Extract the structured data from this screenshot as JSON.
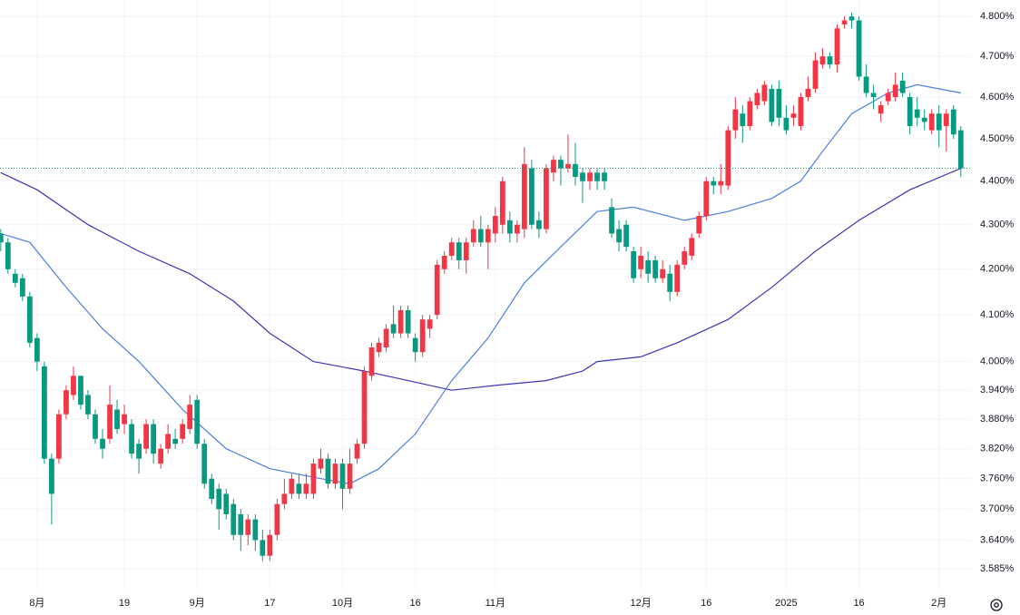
{
  "chart_data": {
    "type": "candlestick",
    "log_scale": true,
    "grid": true,
    "up_color": "#f23645",
    "down_color": "#089981",
    "price_line_color": "#089981",
    "open": [
      4.28,
      4.26,
      4.19,
      4.18,
      4.14,
      4.05,
      3.99,
      3.8,
      3.8,
      3.89,
      3.93,
      3.97,
      3.93,
      3.89,
      3.84,
      3.84,
      3.9,
      3.87,
      3.87,
      3.83,
      3.82,
      3.87,
      3.79,
      3.82,
      3.84,
      3.84,
      3.86,
      3.92,
      3.83,
      3.76,
      3.74,
      3.73,
      3.71,
      3.69,
      3.65,
      3.68,
      3.64,
      3.61,
      3.65,
      3.71,
      3.73,
      3.75,
      3.73,
      3.73,
      3.78,
      3.8,
      3.75,
      3.79,
      3.74,
      3.8,
      3.83,
      3.97,
      4.02,
      4.03,
      4.08,
      4.06,
      4.11,
      4.05,
      4.02,
      4.07,
      4.1,
      4.2,
      4.23,
      4.26,
      4.22,
      4.26,
      4.29,
      4.26,
      4.28,
      4.3,
      4.31,
      4.28,
      4.29,
      4.43,
      4.31,
      4.29,
      4.42,
      4.45,
      4.43,
      4.44,
      4.42,
      4.4,
      4.42,
      4.42,
      4.34,
      4.29,
      4.3,
      4.24,
      4.2,
      4.22,
      4.22,
      4.18,
      4.19,
      4.15,
      4.21,
      4.23,
      4.28,
      4.32,
      4.4,
      4.39,
      4.39,
      4.52,
      4.56,
      4.53,
      4.58,
      4.59,
      4.62,
      4.62,
      4.55,
      4.55,
      4.53,
      4.6,
      4.62,
      4.68,
      4.7,
      4.68,
      4.78,
      4.8,
      4.79,
      4.65,
      4.61,
      4.56,
      4.59,
      4.6,
      4.64,
      4.6,
      4.57,
      4.55,
      4.52,
      4.56,
      4.53,
      4.57,
      4.52
    ],
    "high": [
      4.29,
      4.27,
      4.2,
      4.19,
      4.15,
      4.06,
      4.0,
      3.81,
      3.9,
      3.95,
      3.99,
      3.97,
      3.94,
      3.9,
      3.86,
      3.95,
      3.92,
      3.91,
      3.88,
      3.84,
      3.88,
      3.88,
      3.83,
      3.87,
      3.86,
      3.88,
      3.93,
      3.93,
      3.84,
      3.77,
      3.75,
      3.74,
      3.72,
      3.7,
      3.69,
      3.69,
      3.66,
      3.66,
      3.72,
      3.76,
      3.77,
      3.77,
      3.77,
      3.8,
      3.82,
      3.81,
      3.8,
      3.8,
      3.82,
      3.84,
      3.99,
      4.04,
      4.05,
      4.08,
      4.12,
      4.12,
      4.12,
      4.06,
      4.1,
      4.1,
      4.22,
      4.24,
      4.27,
      4.27,
      4.27,
      4.31,
      4.32,
      4.3,
      4.34,
      4.41,
      4.33,
      4.31,
      4.48,
      4.45,
      4.33,
      4.44,
      4.46,
      4.46,
      4.51,
      4.49,
      4.43,
      4.43,
      4.43,
      4.43,
      4.36,
      4.31,
      4.31,
      4.25,
      4.25,
      4.24,
      4.23,
      4.22,
      4.21,
      4.22,
      4.25,
      4.28,
      4.33,
      4.41,
      4.41,
      4.44,
      4.53,
      4.6,
      4.58,
      4.6,
      4.62,
      4.64,
      4.63,
      4.64,
      4.58,
      4.58,
      4.61,
      4.65,
      4.71,
      4.72,
      4.71,
      4.78,
      4.8,
      4.81,
      4.8,
      4.68,
      4.63,
      4.59,
      4.62,
      4.66,
      4.66,
      4.61,
      4.6,
      4.57,
      4.57,
      4.58,
      4.57,
      4.58,
      4.53
    ],
    "low": [
      4.24,
      4.19,
      4.16,
      4.13,
      4.03,
      3.98,
      3.79,
      3.67,
      3.79,
      3.88,
      3.92,
      3.9,
      3.88,
      3.83,
      3.8,
      3.83,
      3.85,
      3.85,
      3.8,
      3.77,
      3.81,
      3.79,
      3.78,
      3.81,
      3.82,
      3.83,
      3.85,
      3.82,
      3.74,
      3.71,
      3.66,
      3.68,
      3.64,
      3.62,
      3.63,
      3.62,
      3.6,
      3.6,
      3.64,
      3.7,
      3.72,
      3.72,
      3.72,
      3.72,
      3.77,
      3.74,
      3.74,
      3.7,
      3.73,
      3.79,
      3.82,
      3.96,
      4.01,
      4.02,
      4.05,
      4.05,
      4.05,
      4.0,
      4.01,
      4.05,
      4.09,
      4.19,
      4.22,
      4.2,
      4.19,
      4.25,
      4.25,
      4.2,
      4.26,
      4.28,
      4.26,
      4.26,
      4.27,
      4.29,
      4.27,
      4.28,
      4.4,
      4.39,
      4.42,
      4.39,
      4.35,
      4.38,
      4.38,
      4.38,
      4.27,
      4.24,
      4.24,
      4.17,
      4.18,
      4.17,
      4.17,
      4.17,
      4.13,
      4.14,
      4.2,
      4.22,
      4.27,
      4.31,
      4.37,
      4.37,
      4.38,
      4.5,
      4.49,
      4.52,
      4.57,
      4.58,
      4.53,
      4.53,
      4.51,
      4.53,
      4.52,
      4.59,
      4.61,
      4.67,
      4.67,
      4.66,
      4.77,
      4.77,
      4.64,
      4.6,
      4.57,
      4.54,
      4.58,
      4.59,
      4.6,
      4.51,
      4.53,
      4.52,
      4.51,
      4.48,
      4.47,
      4.5,
      4.41
    ],
    "close": [
      4.26,
      4.2,
      4.17,
      4.14,
      4.04,
      4.0,
      3.8,
      3.73,
      3.89,
      3.94,
      3.97,
      3.91,
      3.89,
      3.84,
      3.82,
      3.91,
      3.86,
      3.89,
      3.81,
      3.8,
      3.87,
      3.81,
      3.82,
      3.85,
      3.83,
      3.87,
      3.91,
      3.83,
      3.75,
      3.72,
      3.7,
      3.69,
      3.65,
      3.65,
      3.68,
      3.64,
      3.61,
      3.65,
      3.71,
      3.73,
      3.76,
      3.73,
      3.75,
      3.79,
      3.8,
      3.75,
      3.79,
      3.74,
      3.79,
      3.83,
      3.98,
      4.03,
      4.04,
      4.07,
      4.06,
      4.11,
      4.06,
      4.02,
      4.09,
      4.09,
      4.21,
      4.23,
      4.26,
      4.22,
      4.26,
      4.29,
      4.26,
      4.29,
      4.32,
      4.4,
      4.28,
      4.3,
      4.44,
      4.3,
      4.29,
      4.43,
      4.45,
      4.43,
      4.44,
      4.41,
      4.4,
      4.42,
      4.4,
      4.4,
      4.28,
      4.26,
      4.25,
      4.18,
      4.23,
      4.19,
      4.18,
      4.2,
      4.15,
      4.21,
      4.24,
      4.27,
      4.32,
      4.4,
      4.39,
      4.4,
      4.52,
      4.57,
      4.53,
      4.59,
      4.61,
      4.63,
      4.54,
      4.55,
      4.52,
      4.56,
      4.6,
      4.62,
      4.69,
      4.7,
      4.68,
      4.77,
      4.79,
      4.79,
      4.65,
      4.61,
      4.6,
      4.58,
      4.61,
      4.63,
      4.61,
      4.53,
      4.55,
      4.54,
      4.56,
      4.52,
      4.56,
      4.51,
      4.43
    ],
    "lines": [
      {
        "color": "#3b35b8",
        "x": [
          0,
          5,
          12,
          19,
          26,
          32,
          37,
          43,
          50,
          56,
          62,
          68,
          75,
          80,
          82,
          88,
          93,
          100,
          106,
          112,
          118,
          125,
          132
        ],
        "values": [
          4.42,
          4.38,
          4.3,
          4.24,
          4.19,
          4.13,
          4.06,
          4.0,
          3.98,
          3.96,
          3.94,
          3.95,
          3.96,
          3.98,
          4.0,
          4.01,
          4.04,
          4.09,
          4.16,
          4.24,
          4.31,
          4.38,
          4.43
        ]
      },
      {
        "color": "#4a7fe2",
        "x": [
          0,
          4,
          9,
          14,
          19,
          25,
          31,
          37,
          44,
          48,
          52,
          57,
          62,
          67,
          72,
          77,
          82,
          87,
          94,
          100,
          106,
          110,
          113,
          117,
          122,
          126,
          132
        ],
        "values": [
          4.28,
          4.26,
          4.16,
          4.07,
          4.0,
          3.9,
          3.82,
          3.78,
          3.76,
          3.75,
          3.78,
          3.85,
          3.96,
          4.05,
          4.17,
          4.25,
          4.33,
          4.34,
          4.31,
          4.33,
          4.36,
          4.4,
          4.47,
          4.56,
          4.61,
          4.63,
          4.61
        ]
      }
    ],
    "xlim": [
      -0.1,
      133.4
    ],
    "xticks": [
      {
        "value": 5,
        "label": "8月"
      },
      {
        "value": 17,
        "label": "19"
      },
      {
        "value": 27,
        "label": "9月"
      },
      {
        "value": 37,
        "label": "17"
      },
      {
        "value": 47,
        "label": "10月"
      },
      {
        "value": 57,
        "label": "16"
      },
      {
        "value": 68,
        "label": "11月"
      },
      {
        "value": 88,
        "label": "12月"
      },
      {
        "value": 97,
        "label": "16"
      },
      {
        "value": 108,
        "label": "2025"
      },
      {
        "value": 118,
        "label": "16"
      },
      {
        "value": 129,
        "label": "2月"
      }
    ],
    "ylim": [
      3.546,
      4.842
    ],
    "yticks": [
      {
        "value": 4.8,
        "label": "4.800%"
      },
      {
        "value": 4.7,
        "label": "4.700%"
      },
      {
        "value": 4.6,
        "label": "4.600%"
      },
      {
        "value": 4.5,
        "label": "4.500%"
      },
      {
        "value": 4.4,
        "label": "4.400%"
      },
      {
        "value": 4.3,
        "label": "4.300%"
      },
      {
        "value": 4.2,
        "label": "4.200%"
      },
      {
        "value": 4.1,
        "label": "4.100%"
      },
      {
        "value": 4.0,
        "label": "4.000%"
      },
      {
        "value": 3.94,
        "label": "3.940%"
      },
      {
        "value": 3.88,
        "label": "3.880%"
      },
      {
        "value": 3.82,
        "label": "3.820%"
      },
      {
        "value": 3.76,
        "label": "3.760%"
      },
      {
        "value": 3.7,
        "label": "3.700%"
      },
      {
        "value": 3.64,
        "label": "3.640%"
      },
      {
        "value": 3.585,
        "label": "3.585%"
      }
    ]
  }
}
